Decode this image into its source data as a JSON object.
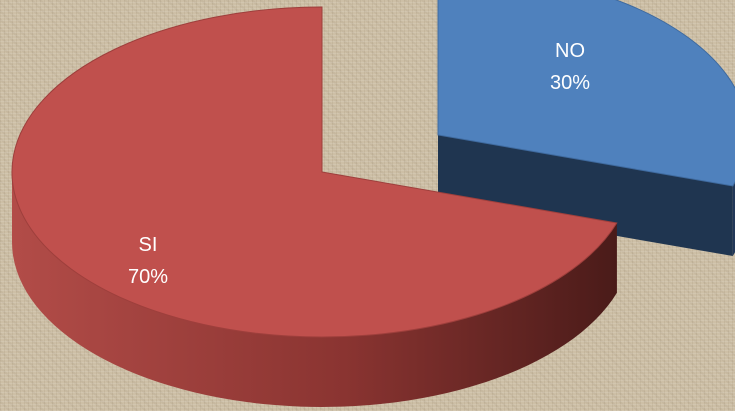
{
  "chart_data": {
    "type": "pie",
    "style": "3d-exploded",
    "categories": [
      "SI",
      "NO"
    ],
    "values": [
      70,
      30
    ],
    "value_labels": [
      "70%",
      "30%"
    ],
    "colors": {
      "SI": {
        "top": "#c0504d",
        "side_light": "#a84844",
        "side_dark": "#4e1c1a"
      },
      "NO": {
        "top": "#4f81bd",
        "side_light": "#2b4a6e",
        "side_dark": "#1f3550"
      }
    },
    "legend": "none"
  }
}
